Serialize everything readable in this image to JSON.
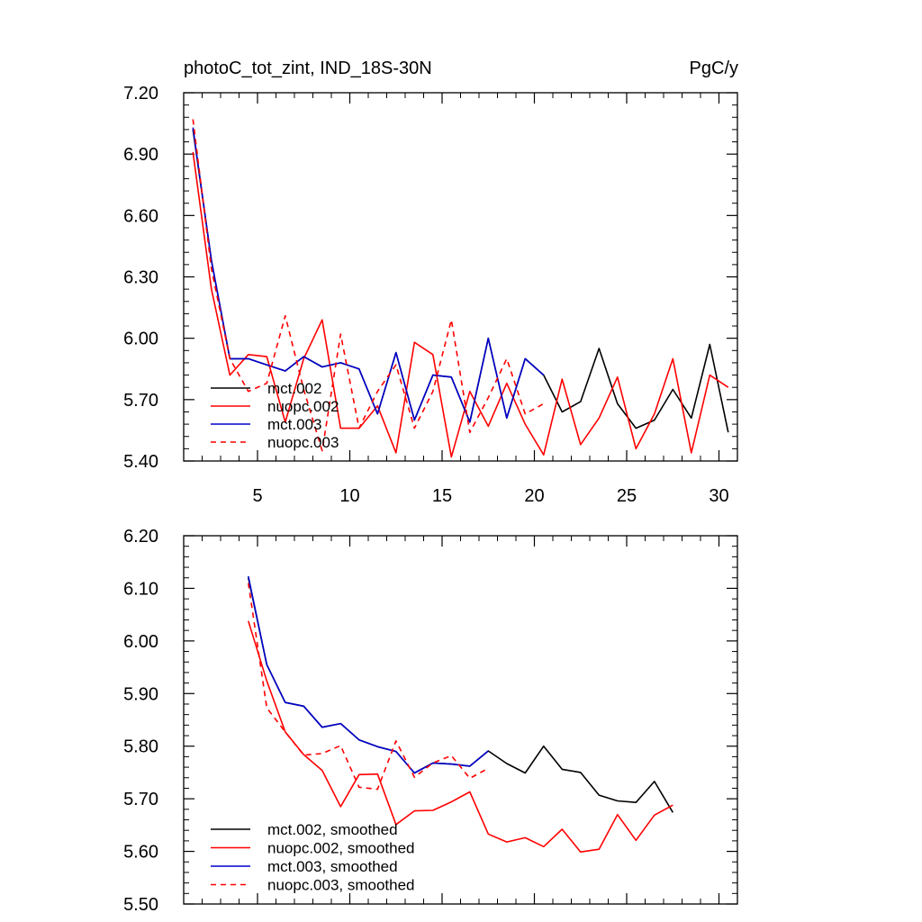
{
  "chart_data": [
    {
      "type": "line",
      "title": "photoC_tot_zint, IND_18S-30N",
      "units": "PgC/y",
      "xlabel": "",
      "ylabel": "",
      "xlim": [
        1,
        31
      ],
      "ylim": [
        5.4,
        7.2
      ],
      "xticks": [
        5,
        10,
        15,
        20,
        25,
        30
      ],
      "xtick_labels": [
        "5",
        "10",
        "15",
        "20",
        "25",
        "30"
      ],
      "yticks": [
        5.4,
        5.7,
        6.0,
        6.3,
        6.6,
        6.9,
        7.2
      ],
      "ytick_labels": [
        "5.40",
        "5.70",
        "6.00",
        "6.30",
        "6.60",
        "6.90",
        "7.20"
      ],
      "legend_position": "bottom-left",
      "series": [
        {
          "name": "mct.002",
          "color": "#000000",
          "dash": "solid",
          "x": [
            1.5,
            2.5,
            3.5,
            4.5,
            5.5,
            6.5,
            7.5,
            8.5,
            9.5,
            10.5,
            11.5,
            12.5,
            13.5,
            14.5,
            15.5,
            16.5,
            17.5,
            18.5,
            19.5,
            20.5,
            21.5,
            22.5,
            23.5,
            24.5,
            25.5,
            26.5,
            27.5,
            28.5,
            29.5,
            30.5
          ],
          "values": [
            7.02,
            6.38,
            5.9,
            5.9,
            5.87,
            5.84,
            5.91,
            5.86,
            5.88,
            5.85,
            5.63,
            5.93,
            5.6,
            5.82,
            5.81,
            5.59,
            6.0,
            5.61,
            5.9,
            5.82,
            5.64,
            5.69,
            5.95,
            5.68,
            5.56,
            5.6,
            5.75,
            5.61,
            5.97,
            5.54
          ]
        },
        {
          "name": "nuopc.002",
          "color": "#ff0000",
          "dash": "solid",
          "x": [
            1.5,
            2.5,
            3.5,
            4.5,
            5.5,
            6.5,
            7.5,
            8.5,
            9.5,
            10.5,
            11.5,
            12.5,
            13.5,
            14.5,
            15.5,
            16.5,
            17.5,
            18.5,
            19.5,
            20.5,
            21.5,
            22.5,
            23.5,
            24.5,
            25.5,
            26.5,
            27.5,
            28.5,
            29.5,
            30.5
          ],
          "values": [
            6.91,
            6.24,
            5.82,
            5.92,
            5.91,
            5.59,
            5.9,
            6.09,
            5.56,
            5.56,
            5.67,
            5.44,
            5.98,
            5.92,
            5.42,
            5.74,
            5.57,
            5.78,
            5.58,
            5.43,
            5.8,
            5.48,
            5.61,
            5.81,
            5.46,
            5.63,
            5.9,
            5.44,
            5.82,
            5.76
          ]
        },
        {
          "name": "mct.003",
          "color": "#0000cc",
          "dash": "solid",
          "x": [
            1.5,
            2.5,
            3.5,
            4.5,
            5.5,
            6.5,
            7.5,
            8.5,
            9.5,
            10.5,
            11.5,
            12.5,
            13.5,
            14.5,
            15.5,
            16.5,
            17.5,
            18.5,
            19.5,
            20.5
          ],
          "values": [
            7.03,
            6.38,
            5.9,
            5.9,
            5.87,
            5.84,
            5.91,
            5.86,
            5.88,
            5.85,
            5.63,
            5.93,
            5.6,
            5.82,
            5.81,
            5.59,
            6.0,
            5.61,
            5.9,
            5.82
          ]
        },
        {
          "name": "nuopc.003",
          "color": "#ff0000",
          "dash": "dashed",
          "x": [
            1.5,
            2.5,
            3.5,
            4.5,
            5.5,
            6.5,
            7.5,
            8.5,
            9.5,
            10.5,
            11.5,
            12.5,
            13.5,
            14.5,
            15.5,
            16.5,
            17.5,
            18.5,
            19.5,
            20.5
          ],
          "values": [
            7.07,
            6.34,
            5.9,
            5.74,
            5.78,
            6.11,
            5.75,
            5.45,
            6.02,
            5.56,
            5.74,
            5.87,
            5.56,
            5.74,
            6.09,
            5.54,
            5.71,
            5.9,
            5.63,
            5.68
          ]
        }
      ]
    },
    {
      "type": "line",
      "title": "",
      "xlabel": "",
      "ylabel": "",
      "xlim": [
        1,
        31
      ],
      "ylim": [
        5.5,
        6.2
      ],
      "xticks": [
        5,
        10,
        15,
        20,
        25,
        30
      ],
      "xtick_labels": [],
      "yticks": [
        5.5,
        5.6,
        5.7,
        5.8,
        5.9,
        6.0,
        6.1,
        6.2
      ],
      "ytick_labels": [
        "5.50",
        "5.60",
        "5.70",
        "5.80",
        "5.90",
        "6.00",
        "6.10",
        "6.20"
      ],
      "legend_position": "bottom-left",
      "series": [
        {
          "name": "mct.002, smoothed",
          "color": "#000000",
          "dash": "solid",
          "x": [
            4.5,
            5.5,
            6.5,
            7.5,
            8.5,
            9.5,
            10.5,
            11.5,
            12.5,
            13.5,
            14.5,
            15.5,
            16.5,
            17.5,
            18.5,
            19.5,
            20.5,
            21.5,
            22.5,
            23.5,
            24.5,
            25.5,
            26.5,
            27.5
          ],
          "values": [
            6.12,
            5.955,
            5.883,
            5.876,
            5.836,
            5.843,
            5.812,
            5.799,
            5.79,
            5.749,
            5.768,
            5.766,
            5.762,
            5.791,
            5.767,
            5.749,
            5.8,
            5.756,
            5.75,
            5.707,
            5.696,
            5.693,
            5.733,
            5.674
          ]
        },
        {
          "name": "nuopc.002, smoothed",
          "color": "#ff0000",
          "dash": "solid",
          "x": [
            4.5,
            5.5,
            6.5,
            7.5,
            8.5,
            9.5,
            10.5,
            11.5,
            12.5,
            13.5,
            14.5,
            15.5,
            16.5,
            17.5,
            18.5,
            19.5,
            20.5,
            21.5,
            22.5,
            23.5,
            24.5,
            25.5,
            26.5,
            27.5
          ],
          "values": [
            6.038,
            5.924,
            5.827,
            5.784,
            5.754,
            5.685,
            5.746,
            5.747,
            5.651,
            5.677,
            5.678,
            5.694,
            5.713,
            5.633,
            5.618,
            5.626,
            5.609,
            5.642,
            5.599,
            5.604,
            5.67,
            5.621,
            5.669,
            5.688
          ]
        },
        {
          "name": "mct.003, smoothed",
          "color": "#0000cc",
          "dash": "solid",
          "x": [
            4.5,
            5.5,
            6.5,
            7.5,
            8.5,
            9.5,
            10.5,
            11.5,
            12.5,
            13.5,
            14.5,
            15.5,
            16.5,
            17.5
          ],
          "values": [
            6.123,
            5.955,
            5.883,
            5.876,
            5.836,
            5.843,
            5.812,
            5.799,
            5.79,
            5.749,
            5.768,
            5.766,
            5.762,
            5.791
          ]
        },
        {
          "name": "nuopc.003, smoothed",
          "color": "#ff0000",
          "dash": "dashed",
          "x": [
            4.5,
            5.5,
            6.5,
            7.5,
            8.5,
            9.5,
            10.5,
            11.5,
            12.5,
            13.5,
            14.5,
            15.5,
            16.5,
            17.5
          ],
          "values": [
            6.11,
            5.873,
            5.827,
            5.783,
            5.786,
            5.801,
            5.722,
            5.718,
            5.81,
            5.741,
            5.768,
            5.782,
            5.739,
            5.758
          ]
        }
      ]
    }
  ]
}
